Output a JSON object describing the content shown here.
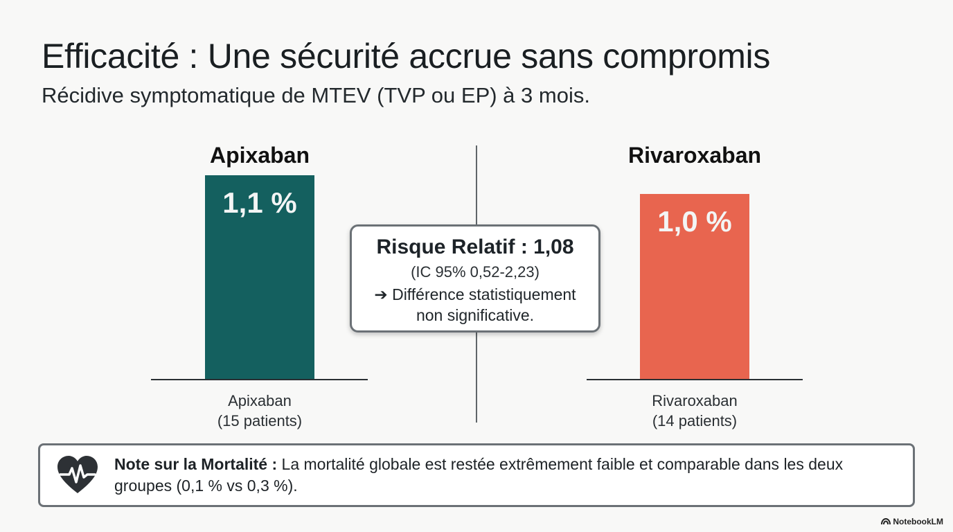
{
  "header": {
    "title": "Efficacité : Une sécurité accrue sans compromis",
    "subtitle": "Récidive symptomatique de MTEV (TVP ou EP) à 3 mois."
  },
  "chart_data": {
    "type": "bar",
    "categories": [
      "Apixaban",
      "Rivaroxaban"
    ],
    "category_notes": [
      "(15 patients)",
      "(14 patients)"
    ],
    "values": [
      1.1,
      1.0
    ],
    "value_labels": [
      "1,1 %",
      "1,0 %"
    ],
    "value_unit": "%",
    "ylim": [
      0,
      1.1
    ],
    "colors": [
      "#14605f",
      "#e8654f"
    ],
    "grid": false,
    "legend": "none"
  },
  "groups": [
    {
      "title": "Apixaban",
      "label": "Apixaban",
      "note": "(15 patients)"
    },
    {
      "title": "Rivaroxaban",
      "label": "Rivaroxaban",
      "note": "(14 patients)"
    }
  ],
  "relative_risk": {
    "title": "Risque Relatif : 1,08",
    "ci": "(IC 95% 0,52-2,23)",
    "conclusion_line1": "➔ Différence statistiquement",
    "conclusion_line2": "non significative."
  },
  "note": {
    "icon": "heart-pulse-icon",
    "label": "Note sur la Mortalité :",
    "text": " La mortalité globale est restée extrêmement faible et comparable dans les deux groupes (0,1 % vs 0,3 %)."
  },
  "watermark": "NotebookLM",
  "colors": {
    "background": "#f8f8f7",
    "apixaban": "#14605f",
    "rivaroxaban": "#e8654f",
    "border": "#6b7176"
  }
}
